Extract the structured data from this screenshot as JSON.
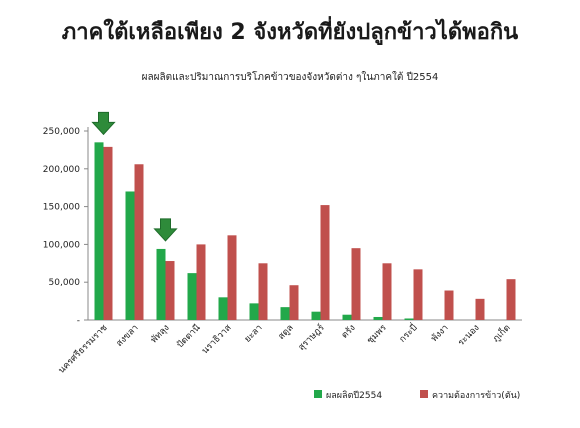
{
  "headline": "ภาคใต้เหลือเพียง 2 จังหวัดที่ยังปลูกข้าวได้พอกิน",
  "chart_data": {
    "type": "bar",
    "title": "ผลผลิตและปริมาณการบริโภคข้าวของจังหวัดต่าง ๆในภาคใต้ ปี2554",
    "xlabel": "",
    "ylabel": "",
    "ylim": [
      0,
      250000
    ],
    "yticks": [
      "-",
      "50,000",
      "100,000",
      "150,000",
      "200,000",
      "250,000"
    ],
    "categories": [
      "นครศรีธรรมราช",
      "สงขลา",
      "พัทลุง",
      "ปัตตานี",
      "นราธิวาส",
      "ยะลา",
      "สตูล",
      "สุราษฎร์",
      "ตรัง",
      "ชุมพร",
      "กระบี่",
      "พังงา",
      "ระนอง",
      "ภูเก็ต"
    ],
    "series": [
      {
        "name": "ผลผลิตปี2554",
        "color": "#22a84a",
        "values": [
          235000,
          170000,
          94000,
          62000,
          30000,
          22000,
          17000,
          11000,
          7000,
          4000,
          2000,
          0,
          0,
          0
        ]
      },
      {
        "name": "ความต้องการข้าว(ตัน)",
        "color": "#c0504d",
        "values": [
          229000,
          206000,
          78000,
          100000,
          112000,
          75000,
          46000,
          152000,
          95000,
          75000,
          67000,
          39000,
          28000,
          54000
        ]
      }
    ],
    "highlighted_categories": [
      "นครศรีธรรมราช",
      "พัทลุง"
    ],
    "arrow_color": "#2e8b3a",
    "grid": false,
    "legend_position": "bottom-right"
  }
}
